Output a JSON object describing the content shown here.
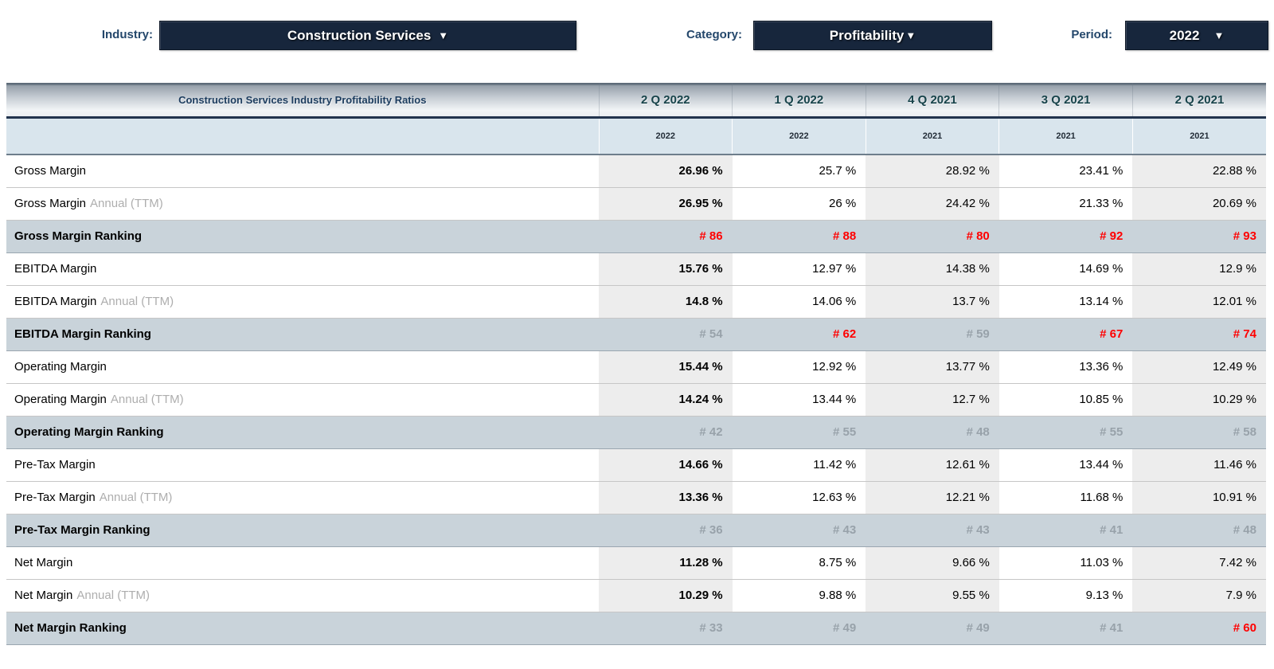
{
  "controls": {
    "industry": {
      "label": "Industry:",
      "value": "Construction Services",
      "arrow": "▼"
    },
    "category": {
      "label": "Category:",
      "value": "Profitability",
      "arrow": "▼"
    },
    "period": {
      "label": "Period:",
      "value": "2022",
      "arrow": "▼"
    }
  },
  "table": {
    "title": "Construction Services Industry Profitability Ratios",
    "columns": [
      "2 Q 2022",
      "1 Q 2022",
      "4 Q 2021",
      "3 Q 2021",
      "2 Q 2021"
    ],
    "years": [
      "2022",
      "2022",
      "2021",
      "2021",
      "2021"
    ],
    "rows": [
      {
        "type": "data",
        "label": "Gross Margin",
        "suffix": "",
        "values": [
          "26.96 %",
          "25.7 %",
          "28.92 %",
          "23.41 %",
          "22.88 %"
        ]
      },
      {
        "type": "data",
        "label": "Gross Margin",
        "suffix": "Annual (TTM)",
        "values": [
          "26.95 %",
          "26 %",
          "24.42 %",
          "21.33 %",
          "20.69 %"
        ]
      },
      {
        "type": "ranking",
        "label": "Gross Margin Ranking",
        "values": [
          "# 86",
          "# 88",
          "# 80",
          "# 92",
          "# 93"
        ],
        "red": [
          true,
          true,
          true,
          true,
          true
        ]
      },
      {
        "type": "data",
        "label": "EBITDA Margin",
        "suffix": "",
        "values": [
          "15.76 %",
          "12.97 %",
          "14.38 %",
          "14.69 %",
          "12.9 %"
        ]
      },
      {
        "type": "data",
        "label": "EBITDA Margin",
        "suffix": "Annual (TTM)",
        "values": [
          "14.8 %",
          "14.06 %",
          "13.7 %",
          "13.14 %",
          "12.01 %"
        ]
      },
      {
        "type": "ranking",
        "label": "EBITDA Margin Ranking",
        "values": [
          "# 54",
          "# 62",
          "# 59",
          "# 67",
          "# 74"
        ],
        "red": [
          false,
          true,
          false,
          true,
          true
        ]
      },
      {
        "type": "data",
        "label": "Operating Margin",
        "suffix": "",
        "values": [
          "15.44 %",
          "12.92 %",
          "13.77 %",
          "13.36 %",
          "12.49 %"
        ]
      },
      {
        "type": "data",
        "label": "Operating Margin",
        "suffix": "Annual (TTM)",
        "values": [
          "14.24 %",
          "13.44 %",
          "12.7 %",
          "10.85 %",
          "10.29 %"
        ]
      },
      {
        "type": "ranking",
        "label": "Operating Margin Ranking",
        "values": [
          "# 42",
          "# 55",
          "# 48",
          "# 55",
          "# 58"
        ],
        "red": [
          false,
          false,
          false,
          false,
          false
        ]
      },
      {
        "type": "data",
        "label": "Pre-Tax Margin",
        "suffix": "",
        "values": [
          "14.66 %",
          "11.42 %",
          "12.61 %",
          "13.44 %",
          "11.46 %"
        ]
      },
      {
        "type": "data",
        "label": "Pre-Tax Margin",
        "suffix": "Annual (TTM)",
        "values": [
          "13.36 %",
          "12.63 %",
          "12.21 %",
          "11.68 %",
          "10.91 %"
        ]
      },
      {
        "type": "ranking",
        "label": "Pre-Tax Margin Ranking",
        "values": [
          "# 36",
          "# 43",
          "# 43",
          "# 41",
          "# 48"
        ],
        "red": [
          false,
          false,
          false,
          false,
          false
        ]
      },
      {
        "type": "data",
        "label": "Net Margin",
        "suffix": "",
        "values": [
          "11.28 %",
          "8.75 %",
          "9.66 %",
          "11.03 %",
          "7.42 %"
        ]
      },
      {
        "type": "data",
        "label": "Net Margin",
        "suffix": "Annual (TTM)",
        "values": [
          "10.29 %",
          "9.88 %",
          "9.55 %",
          "9.13 %",
          "7.9 %"
        ]
      },
      {
        "type": "ranking",
        "label": "Net Margin Ranking",
        "values": [
          "# 33",
          "# 49",
          "# 49",
          "# 41",
          "# 60"
        ],
        "red": [
          false,
          false,
          false,
          false,
          true
        ]
      }
    ]
  },
  "colors": {
    "dropdown_bg": "#17263c",
    "label_blue": "#24476b",
    "title_navy": "#1c3c5e",
    "header_teal": "#17434a",
    "subheader_bg": "#d9e5ed",
    "ranking_bg": "#c9d3da",
    "stripe_gray": "#ededed",
    "rank_red": "#ff0000",
    "rank_gray": "#98a2aa",
    "suffix_gray": "#aeaeae"
  }
}
